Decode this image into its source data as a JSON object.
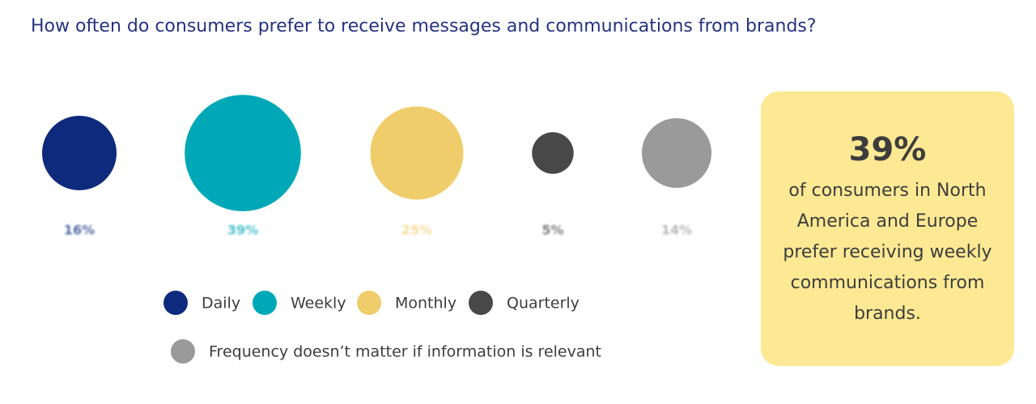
{
  "chart_data": {
    "type": "bubble",
    "title": "How often do consumers prefer to receive messages and communications from brands?",
    "categories": [
      "Daily",
      "Weekly",
      "Monthly",
      "Quarterly",
      "Frequency doesn’t matter if information is relevant"
    ],
    "values": [
      16,
      39,
      25,
      5,
      14
    ],
    "value_labels": [
      "16%",
      "39%",
      "25%",
      "5%",
      "14%"
    ],
    "colors": [
      "#0e2a7d",
      "#00a8b7",
      "#f0cd6b",
      "#484848",
      "#9a9a9a"
    ],
    "callout": {
      "highlight": "39%",
      "text": "of consumers in North America and Europe prefer receiving weekly communications from brands."
    }
  }
}
